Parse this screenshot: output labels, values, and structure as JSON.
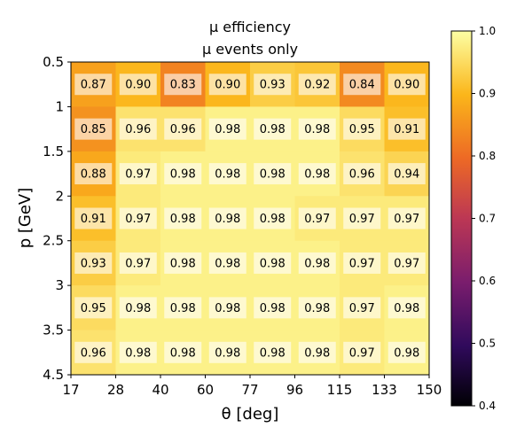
{
  "chart_data": {
    "type": "heatmap",
    "title_lines": [
      "μ efficiency",
      "μ events only"
    ],
    "xlabel": "θ [deg]",
    "ylabel": "p [GeV]",
    "x_bin_edges": [
      17,
      28,
      40,
      60,
      77,
      96,
      115,
      133,
      150
    ],
    "y_bin_edges": [
      0.5,
      1,
      1.5,
      2,
      2.5,
      3,
      3.5,
      4.5
    ],
    "x_tick_labels": [
      "17",
      "28",
      "40",
      "60",
      "77",
      "96",
      "115",
      "133",
      "150"
    ],
    "y_tick_labels": [
      "0.5",
      "1",
      "1.5",
      "2",
      "2.5",
      "3",
      "3.5",
      "4.5"
    ],
    "values": [
      [
        0.87,
        0.9,
        0.83,
        0.9,
        0.93,
        0.92,
        0.84,
        0.9
      ],
      [
        0.85,
        0.96,
        0.96,
        0.98,
        0.98,
        0.98,
        0.95,
        0.91
      ],
      [
        0.88,
        0.97,
        0.98,
        0.98,
        0.98,
        0.98,
        0.96,
        0.94
      ],
      [
        0.91,
        0.97,
        0.98,
        0.98,
        0.98,
        0.97,
        0.97,
        0.97
      ],
      [
        0.93,
        0.97,
        0.98,
        0.98,
        0.98,
        0.98,
        0.97,
        0.97
      ],
      [
        0.95,
        0.98,
        0.98,
        0.98,
        0.98,
        0.98,
        0.97,
        0.98
      ],
      [
        0.96,
        0.98,
        0.98,
        0.98,
        0.98,
        0.98,
        0.97,
        0.98
      ]
    ],
    "colorbar": {
      "range": [
        0.4,
        1.0
      ],
      "ticks": [
        "0.4",
        "0.5",
        "0.6",
        "0.7",
        "0.8",
        "0.9",
        "1.0"
      ],
      "colormap": "inferno-like"
    }
  }
}
